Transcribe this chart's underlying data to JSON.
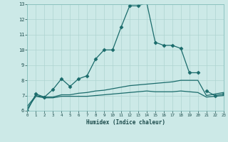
{
  "xlabel": "Humidex (Indice chaleur)",
  "xlim": [
    0,
    23
  ],
  "ylim": [
    6,
    13
  ],
  "yticks": [
    6,
    7,
    8,
    9,
    10,
    11,
    12,
    13
  ],
  "xticks": [
    0,
    1,
    2,
    3,
    4,
    5,
    6,
    7,
    8,
    9,
    10,
    11,
    12,
    13,
    14,
    15,
    16,
    17,
    18,
    19,
    20,
    21,
    22,
    23
  ],
  "bg_color": "#cce9e7",
  "grid_color": "#aed4d1",
  "line_color": "#1a6b6b",
  "line1_x": [
    0,
    1,
    2,
    3,
    4,
    5,
    6,
    7,
    8,
    9,
    10,
    11,
    12,
    13,
    14,
    15,
    16,
    17,
    18,
    19,
    20
  ],
  "line1_y": [
    6.0,
    7.1,
    6.9,
    7.4,
    8.1,
    7.6,
    8.1,
    8.3,
    9.4,
    10.0,
    10.0,
    11.5,
    12.9,
    12.9,
    13.1,
    10.5,
    10.3,
    10.3,
    10.1,
    8.5,
    8.5
  ],
  "line2_x": [
    21,
    22,
    23
  ],
  "line2_y": [
    7.3,
    7.0,
    7.1
  ],
  "line3_x": [
    0,
    1,
    2,
    3,
    4,
    5,
    6,
    7,
    8,
    9,
    10,
    11,
    12,
    13,
    14,
    15,
    16,
    17,
    18,
    19,
    20,
    21,
    22,
    23
  ],
  "line3_y": [
    6.3,
    7.0,
    6.9,
    6.9,
    7.05,
    7.05,
    7.15,
    7.2,
    7.3,
    7.35,
    7.45,
    7.55,
    7.65,
    7.7,
    7.75,
    7.8,
    7.85,
    7.9,
    8.0,
    8.0,
    8.0,
    7.0,
    7.1,
    7.2
  ],
  "line4_x": [
    0,
    1,
    2,
    3,
    4,
    5,
    6,
    7,
    8,
    9,
    10,
    11,
    12,
    13,
    14,
    15,
    16,
    17,
    18,
    19,
    20,
    21,
    22,
    23
  ],
  "line4_y": [
    6.15,
    6.95,
    6.85,
    6.85,
    6.95,
    6.95,
    6.95,
    6.95,
    7.0,
    7.05,
    7.1,
    7.15,
    7.2,
    7.25,
    7.3,
    7.25,
    7.25,
    7.25,
    7.3,
    7.25,
    7.2,
    6.9,
    6.95,
    7.0
  ]
}
